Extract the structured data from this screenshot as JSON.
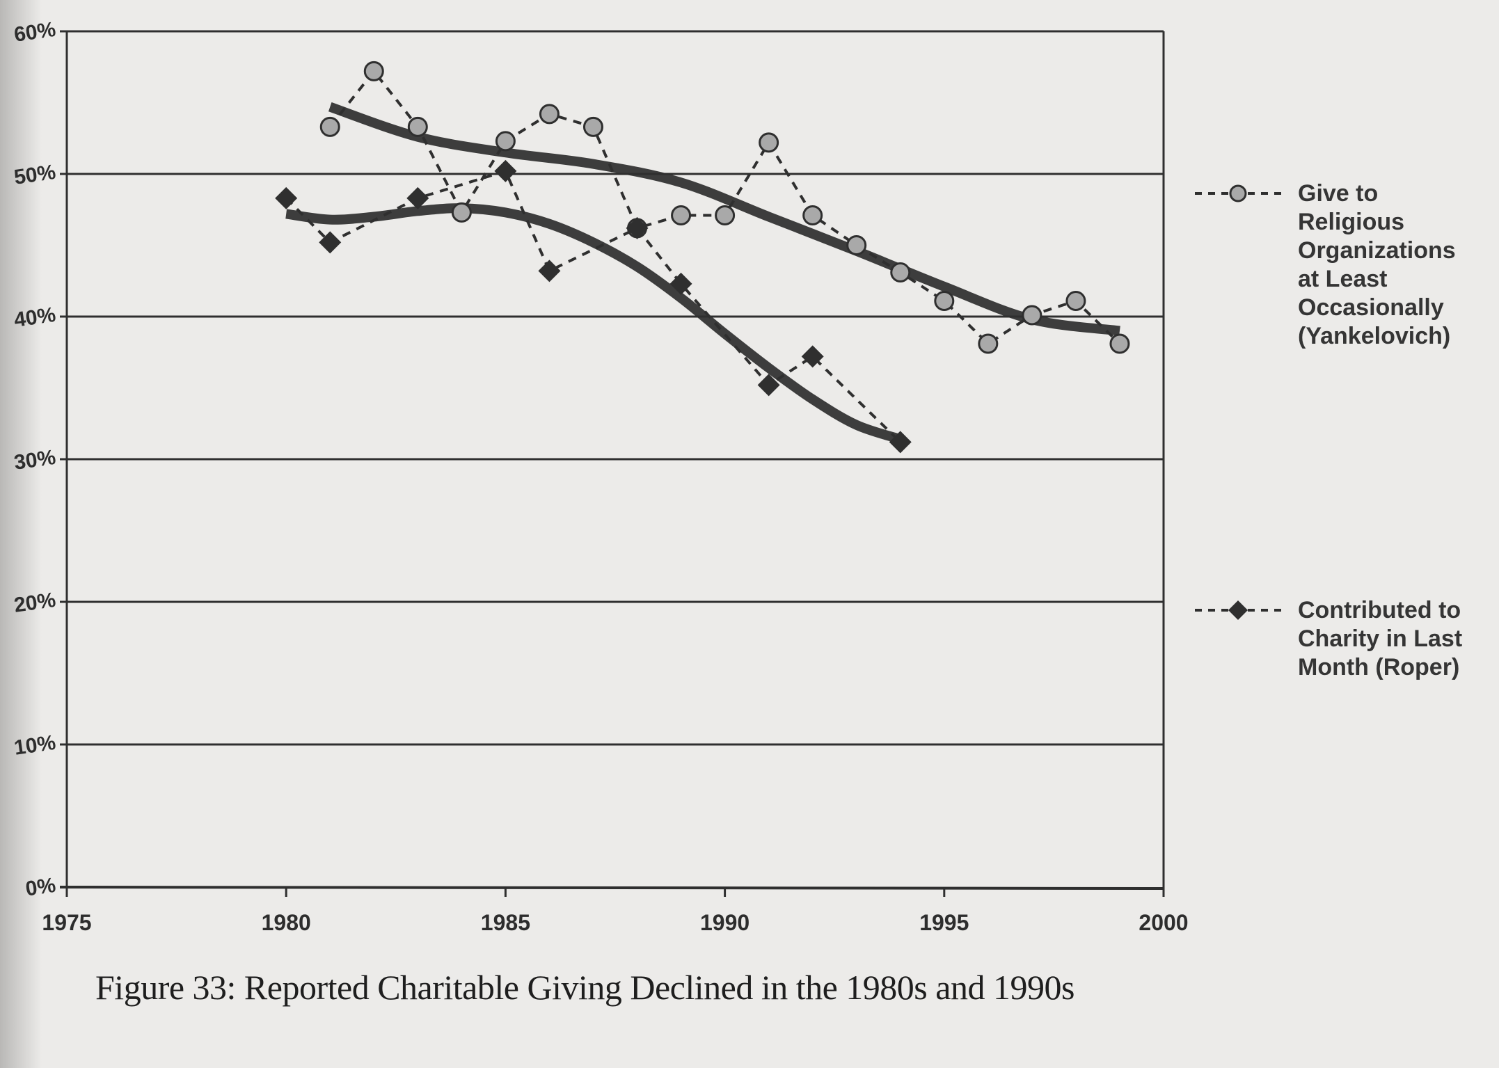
{
  "figure": {
    "caption": "Figure 33: Reported Charitable Giving Declined in the 1980s and 1990s"
  },
  "colors": {
    "ink": "#2f2f2f",
    "circle_fill": "#a9a9a9",
    "paper": "#ecebe9"
  },
  "chart_data": {
    "type": "line",
    "title": "Figure 33: Reported Charitable Giving Declined in the 1980s and 1990s",
    "xlabel": "",
    "ylabel": "",
    "xlim": [
      1975,
      2000
    ],
    "ylim": [
      0,
      60
    ],
    "x_ticks": [
      "1975",
      "1980",
      "1985",
      "1990",
      "1995",
      "2000"
    ],
    "y_ticks": [
      "0%",
      "10%",
      "20%",
      "30%",
      "40%",
      "50%",
      "60%"
    ],
    "grid": "horizontal",
    "legend_position": "right",
    "series": [
      {
        "name": "Give to Religious Organizations at Least Occasionally (Yankelovich)",
        "legend_label": "Give to\nReligious\nOrganizations\nat Least\nOccasionally\n(Yankelovich)",
        "marker": "circle",
        "x": [
          1981,
          1982,
          1983,
          1984,
          1985,
          1986,
          1987,
          1988,
          1989,
          1990,
          1991,
          1992,
          1993,
          1994,
          1995,
          1996,
          1997,
          1998,
          1999
        ],
        "values": [
          53.3,
          57.2,
          53.3,
          47.3,
          52.3,
          54.2,
          53.3,
          46.2,
          47.1,
          47.1,
          52.2,
          47.1,
          45.0,
          43.1,
          41.1,
          38.1,
          40.1,
          41.1,
          38.1
        ],
        "trend": {
          "x": [
            1981,
            1983,
            1985,
            1987,
            1989,
            1991,
            1993,
            1995,
            1997,
            1999
          ],
          "values": [
            54.7,
            52.6,
            51.5,
            50.7,
            49.4,
            47.0,
            44.6,
            42.1,
            39.8,
            39.0
          ]
        }
      },
      {
        "name": "Contributed to Charity in Last Month (Roper)",
        "legend_label": "Contributed to\nCharity in Last\nMonth (Roper)",
        "marker": "diamond",
        "x": [
          1980,
          1981,
          1983,
          1985,
          1986,
          1988,
          1989,
          1991,
          1992,
          1994
        ],
        "values": [
          48.3,
          45.2,
          48.3,
          50.2,
          43.2,
          46.2,
          42.3,
          35.2,
          37.2,
          31.2
        ],
        "trend": {
          "x": [
            1980,
            1981,
            1982,
            1983,
            1984,
            1985,
            1986,
            1987,
            1988,
            1989,
            1990,
            1991,
            1992,
            1993,
            1994
          ],
          "values": [
            47.2,
            46.8,
            47.0,
            47.4,
            47.6,
            47.3,
            46.5,
            45.2,
            43.5,
            41.3,
            38.8,
            36.4,
            34.2,
            32.4,
            31.4
          ]
        }
      }
    ]
  }
}
